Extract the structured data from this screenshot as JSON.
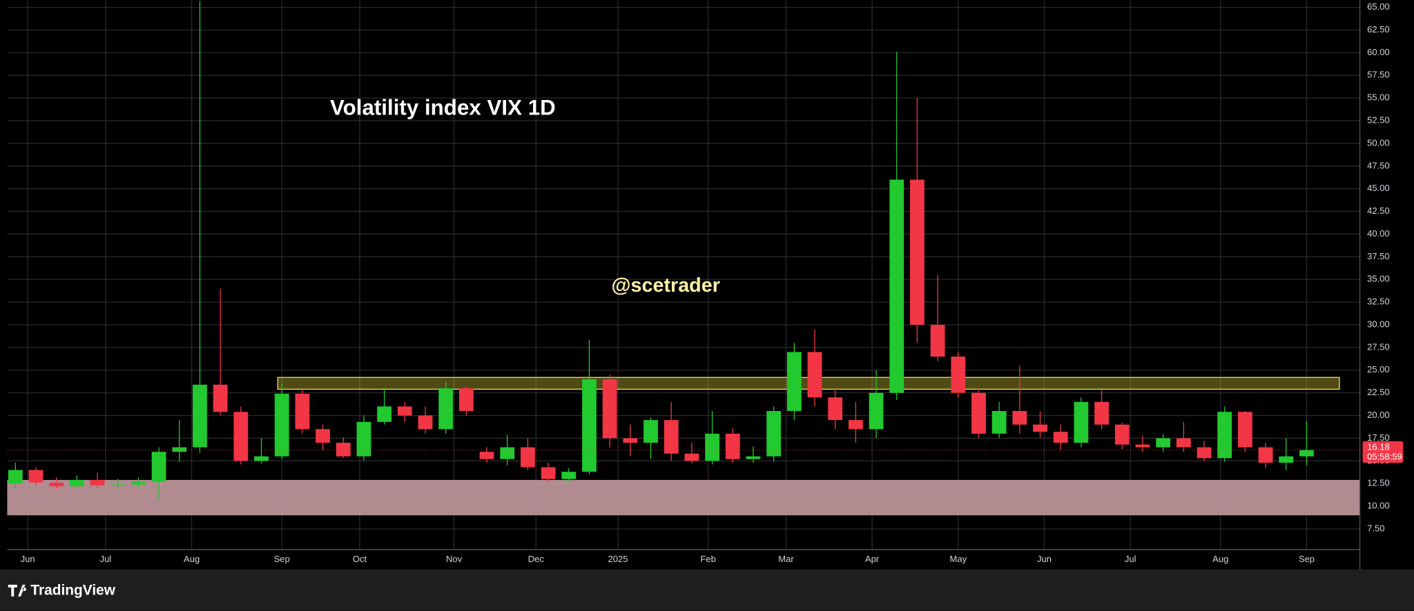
{
  "chart_data": {
    "type": "candlestick",
    "title": "Volatility index VIX 1D",
    "watermark": "@scetrader",
    "footer": "TradingView",
    "up_color": "#22c92f",
    "down_color": "#f23645",
    "grid": true,
    "xlim": [
      0,
      330
    ],
    "ylim": [
      5.22,
      65.79
    ],
    "xticks": [
      {
        "value": 5,
        "label": "Jun"
      },
      {
        "value": 24,
        "label": "Jul"
      },
      {
        "value": 45,
        "label": "Aug"
      },
      {
        "value": 67,
        "label": "Sep"
      },
      {
        "value": 86,
        "label": "Oct"
      },
      {
        "value": 109,
        "label": "Nov"
      },
      {
        "value": 129,
        "label": "Dec"
      },
      {
        "value": 149,
        "label": "2025"
      },
      {
        "value": 171,
        "label": "Feb"
      },
      {
        "value": 190,
        "label": "Mar"
      },
      {
        "value": 211,
        "label": "Apr"
      },
      {
        "value": 232,
        "label": "May"
      },
      {
        "value": 253,
        "label": "Jun"
      },
      {
        "value": 274,
        "label": "Jul"
      },
      {
        "value": 296,
        "label": "Aug"
      },
      {
        "value": 317,
        "label": "Sep"
      }
    ],
    "yticks": [
      {
        "value": 7.5,
        "label": "7.50"
      },
      {
        "value": 10,
        "label": "10.00"
      },
      {
        "value": 12.5,
        "label": "12.50"
      },
      {
        "value": 15,
        "label": "15.00"
      },
      {
        "value": 17.5,
        "label": "17.50"
      },
      {
        "value": 20,
        "label": "20.00"
      },
      {
        "value": 22.5,
        "label": "22.50"
      },
      {
        "value": 25,
        "label": "25.00"
      },
      {
        "value": 27.5,
        "label": "27.50"
      },
      {
        "value": 30,
        "label": "30.00"
      },
      {
        "value": 32.5,
        "label": "32.50"
      },
      {
        "value": 35,
        "label": "35.00"
      },
      {
        "value": 37.5,
        "label": "37.50"
      },
      {
        "value": 40,
        "label": "40.00"
      },
      {
        "value": 42.5,
        "label": "42.50"
      },
      {
        "value": 45,
        "label": "45.00"
      },
      {
        "value": 47.5,
        "label": "47.50"
      },
      {
        "value": 50,
        "label": "50.00"
      },
      {
        "value": 52.5,
        "label": "52.50"
      },
      {
        "value": 55,
        "label": "55.00"
      },
      {
        "value": 57.5,
        "label": "57.50"
      },
      {
        "value": 60,
        "label": "60.00"
      },
      {
        "value": 62.5,
        "label": "62.50"
      },
      {
        "value": 65,
        "label": "65.00"
      }
    ],
    "zones": [
      {
        "xlim": [
          66,
          325
        ],
        "ylim": [
          22.9,
          24.2
        ],
        "color": "#c8b93a"
      },
      {
        "xlim": [
          0,
          330
        ],
        "ylim": [
          9.0,
          12.9
        ],
        "color": "#c49aa0"
      }
    ],
    "x": [
      2,
      7,
      12,
      17,
      22,
      27,
      32,
      37,
      42,
      47,
      52,
      57,
      62,
      67,
      72,
      77,
      82,
      87,
      92,
      97,
      102,
      107,
      112,
      117,
      122,
      127,
      132,
      137,
      142,
      147,
      152,
      157,
      162,
      167,
      172,
      177,
      182,
      187,
      192,
      197,
      202,
      207,
      212,
      217,
      222,
      227,
      232,
      237,
      242,
      247,
      252,
      257,
      262,
      267,
      272,
      277,
      282,
      287,
      292,
      297,
      302,
      307,
      312,
      317
    ],
    "open": [
      12.5,
      14.0,
      12.6,
      12.2,
      12.9,
      12.3,
      12.4,
      12.7,
      16.0,
      16.5,
      23.4,
      20.4,
      15.0,
      15.5,
      22.4,
      18.5,
      17.0,
      15.5,
      19.3,
      21.0,
      20.0,
      18.5,
      23.0,
      16.0,
      15.2,
      16.5,
      14.3,
      13.0,
      13.8,
      24.0,
      17.5,
      17.0,
      19.5,
      15.8,
      15.0,
      18.0,
      15.2,
      15.5,
      20.5,
      27.0,
      22.0,
      19.5,
      18.5,
      22.5,
      46.0,
      30.0,
      26.5,
      22.5,
      18.0,
      20.5,
      19.0,
      18.2,
      17.0,
      21.5,
      19.0,
      16.8,
      16.5,
      17.5,
      16.5,
      15.3,
      20.4,
      16.5,
      14.8,
      15.5
    ],
    "high": [
      14.8,
      14.3,
      13.2,
      13.4,
      13.7,
      13.0,
      13.2,
      16.5,
      19.5,
      65.7,
      34.0,
      21.0,
      17.5,
      23.5,
      22.8,
      19.0,
      17.6,
      20.0,
      23.0,
      21.5,
      21.0,
      23.7,
      23.2,
      16.5,
      17.9,
      17.5,
      14.8,
      14.2,
      28.3,
      24.5,
      19.0,
      19.8,
      21.5,
      17.0,
      20.5,
      18.6,
      16.6,
      21.0,
      28.0,
      29.5,
      23.0,
      21.5,
      25.0,
      60.1,
      55.0,
      35.5,
      27.0,
      23.0,
      21.5,
      25.5,
      20.5,
      19.0,
      22.0,
      22.8,
      19.2,
      17.8,
      17.9,
      19.3,
      17.2,
      21.0,
      20.5,
      17.0,
      17.5,
      19.4
    ],
    "low": [
      11.9,
      12.2,
      11.9,
      12.0,
      12.0,
      11.8,
      12.0,
      10.8,
      14.9,
      15.9,
      20.0,
      14.6,
      14.7,
      15.2,
      18.0,
      16.2,
      15.3,
      15.0,
      19.0,
      19.3,
      18.0,
      18.0,
      20.0,
      14.8,
      14.5,
      14.0,
      12.7,
      12.6,
      13.5,
      16.5,
      15.5,
      15.2,
      15.0,
      14.7,
      14.6,
      14.8,
      14.8,
      14.9,
      19.5,
      21.0,
      18.5,
      17.0,
      17.5,
      21.7,
      28.0,
      26.0,
      22.0,
      17.5,
      17.5,
      18.0,
      17.5,
      16.2,
      16.5,
      18.5,
      16.3,
      16.0,
      16.0,
      16.0,
      15.0,
      14.9,
      16.0,
      14.2,
      14.0,
      14.5
    ],
    "close": [
      14.0,
      12.6,
      12.2,
      12.9,
      12.3,
      12.4,
      12.7,
      16.0,
      16.5,
      23.4,
      20.4,
      15.0,
      15.5,
      22.4,
      18.5,
      17.0,
      15.5,
      19.3,
      21.0,
      20.0,
      18.5,
      23.0,
      20.5,
      15.2,
      16.5,
      14.3,
      13.0,
      13.8,
      24.0,
      17.5,
      17.0,
      19.5,
      15.8,
      15.0,
      18.0,
      15.2,
      15.5,
      20.5,
      27.0,
      22.0,
      19.5,
      18.5,
      22.5,
      46.0,
      30.0,
      26.5,
      22.5,
      18.0,
      20.5,
      19.0,
      18.2,
      17.0,
      21.5,
      19.0,
      16.8,
      16.5,
      17.5,
      16.5,
      15.3,
      20.4,
      16.5,
      14.8,
      15.5,
      16.2
    ],
    "last_price": 16.18,
    "countdown": "05:58:59"
  }
}
